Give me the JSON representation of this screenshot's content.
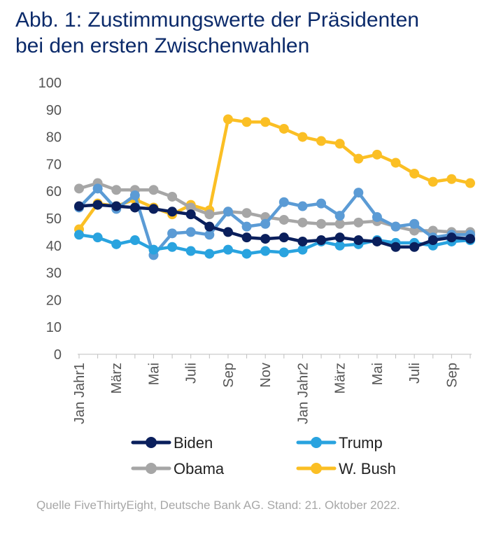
{
  "title": {
    "line1": "Abb. 1: Zustimmungswerte der Präsidenten",
    "line2": "bei den ersten Zwischenwahlen"
  },
  "source": "Quelle FiveThirtyEight, Deutsche Bank AG. Stand: 21. Oktober 2022.",
  "chart_data": {
    "type": "line",
    "xlabel": "",
    "ylabel": "",
    "ylim": [
      0,
      100
    ],
    "yticks": [
      0,
      10,
      20,
      30,
      40,
      50,
      60,
      70,
      80,
      90,
      100
    ],
    "grid": false,
    "legend_position": "bottom",
    "x_tick_labels": [
      {
        "index": 0,
        "label": "Jan Jahr1"
      },
      {
        "index": 2,
        "label": "März"
      },
      {
        "index": 4,
        "label": "Mai"
      },
      {
        "index": 6,
        "label": "Juli"
      },
      {
        "index": 8,
        "label": "Sep"
      },
      {
        "index": 10,
        "label": "Nov"
      },
      {
        "index": 12,
        "label": "Jan Jahr2"
      },
      {
        "index": 14,
        "label": "März"
      },
      {
        "index": 16,
        "label": "Mai"
      },
      {
        "index": 18,
        "label": "Juli"
      },
      {
        "index": 20,
        "label": "Sep"
      }
    ],
    "series": [
      {
        "name": "Biden",
        "color": "#0a1f5c",
        "values": [
          54.5,
          55,
          54.5,
          54,
          53.5,
          52.5,
          51.5,
          47,
          45,
          43,
          42.5,
          43,
          41.5,
          42,
          43,
          42,
          41.5,
          39.5,
          39.5,
          42,
          43,
          42.5
        ]
      },
      {
        "name": "Trump",
        "color": "#29a3df",
        "values": [
          44,
          43,
          40.5,
          42,
          38.5,
          39.5,
          38,
          37,
          38.5,
          37,
          38,
          37.5,
          38.5,
          41.5,
          40,
          40.5,
          42,
          41,
          41,
          40,
          41.5,
          42
        ]
      },
      {
        "name": "Obama",
        "color": "#a6a6a6",
        "values": [
          61,
          63,
          60.5,
          60.5,
          60.5,
          58,
          54,
          51.5,
          52.5,
          52,
          50.5,
          49.5,
          48.5,
          48,
          48,
          48.5,
          49,
          47,
          45.5,
          45.5,
          45,
          45
        ]
      },
      {
        "name": "W. Bush",
        "color": "#fbbf24",
        "values": [
          46,
          55.5,
          54.5,
          57,
          54,
          51.5,
          55,
          53,
          86.5,
          85.5,
          85.5,
          83,
          80,
          78.5,
          77.5,
          72,
          73.5,
          70.5,
          66.5,
          63.5,
          64.5,
          63
        ]
      },
      {
        "name": "",
        "color": "#5b9bd5",
        "values": [
          54,
          61,
          53.5,
          58.5,
          36.5,
          44.5,
          45,
          44,
          52.5,
          47,
          48,
          56,
          54.5,
          55.5,
          51,
          59.5,
          50.5,
          47,
          48,
          43,
          44,
          44
        ]
      }
    ]
  }
}
